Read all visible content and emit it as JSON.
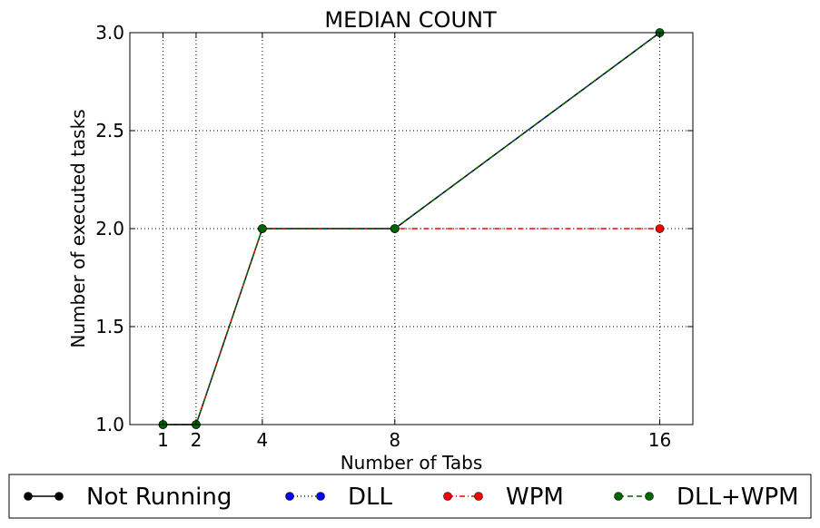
{
  "chart_data": {
    "type": "line",
    "title": "MEDIAN COUNT",
    "xlabel": "Number of Tabs",
    "ylabel": "Number of executed tasks",
    "x": [
      1,
      2,
      4,
      8,
      16
    ],
    "xticks": [
      1,
      2,
      4,
      8,
      16
    ],
    "xlim": [
      0,
      17
    ],
    "ylim": [
      1.0,
      3.0
    ],
    "yticks": [
      1.0,
      1.5,
      2.0,
      2.5,
      3.0
    ],
    "grid": true,
    "legend_position": "bottom-outside",
    "series": [
      {
        "name": "Not Running",
        "values": [
          1,
          1,
          2,
          2,
          3
        ],
        "color": "#000000",
        "linestyle": "solid"
      },
      {
        "name": "DLL",
        "values": [
          1,
          1,
          2,
          2,
          3
        ],
        "color": "#0000ff",
        "linestyle": "dotted"
      },
      {
        "name": "WPM",
        "values": [
          1,
          1,
          2,
          2,
          2
        ],
        "color": "#ff0000",
        "linestyle": "dashdot"
      },
      {
        "name": "DLL+WPM",
        "values": [
          1,
          1,
          2,
          2,
          3
        ],
        "color": "#006400",
        "linestyle": "dashed"
      }
    ]
  }
}
